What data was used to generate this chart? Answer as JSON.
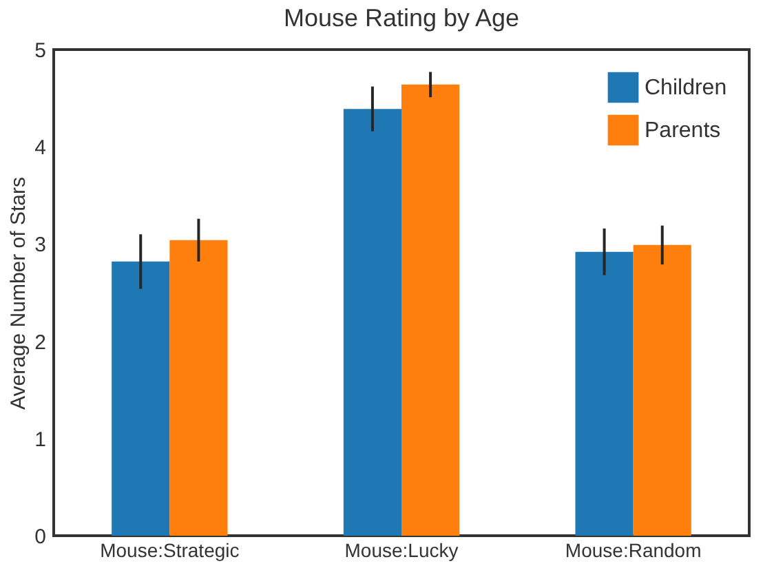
{
  "chart_data": {
    "type": "bar",
    "title": "Mouse Rating by Age",
    "ylabel": "Average Number of Stars",
    "categories": [
      "Mouse:Strategic",
      "Mouse:Lucky",
      "Mouse:Random"
    ],
    "series": [
      {
        "name": "Children",
        "color": "#1f77b4",
        "values": [
          2.82,
          4.39,
          2.92
        ],
        "errors": [
          0.28,
          0.23,
          0.24
        ]
      },
      {
        "name": "Parents",
        "color": "#ff7f0e",
        "values": [
          3.04,
          4.64,
          2.99
        ],
        "errors": [
          0.22,
          0.13,
          0.2
        ]
      }
    ],
    "ylim": [
      0,
      5
    ],
    "yticks": [
      0,
      1,
      2,
      3,
      4,
      5
    ],
    "grid": false,
    "legend": "top right"
  }
}
